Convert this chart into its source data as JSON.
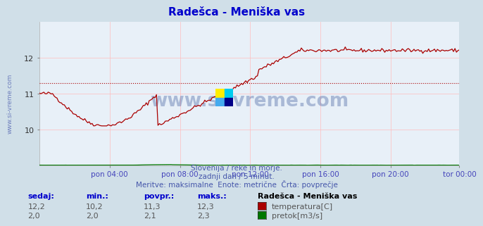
{
  "title": "Radešca - Meniška vas",
  "background_color": "#d0dfe8",
  "plot_bg_color": "#e8f0f8",
  "grid_color_h": "#ffbbbb",
  "grid_color_v": "#ffbbbb",
  "x_labels": [
    "pon 04:00",
    "pon 08:00",
    "pon 12:00",
    "pon 16:00",
    "pon 20:00",
    "tor 00:00"
  ],
  "n_points": 288,
  "ylim": [
    9.0,
    13.0
  ],
  "y_ticks": [
    10,
    11,
    12
  ],
  "temp_color": "#aa0000",
  "flow_color": "#007700",
  "height_color": "#0000cc",
  "temp_avg": 11.3,
  "temp_min": 10.2,
  "temp_max": 12.3,
  "temp_current": 12.2,
  "flow_avg": 2.1,
  "flow_min": 2.0,
  "flow_max": 2.3,
  "flow_current": 2.0,
  "watermark": "www.si-vreme.com",
  "subtitle1": "Slovenija / reke in morje.",
  "subtitle2": "zadnji dan / 5 minut.",
  "subtitle3": "Meritve: maksimalne  Enote: metrične  Črta: povprečje",
  "label_sedaj": "sedaj:",
  "label_min": "min.:",
  "label_povpr": "povpr.:",
  "label_maks": "maks.:",
  "legend_title": "Radešca - Meniška vas",
  "legend_temp": "temperatura[C]",
  "legend_flow": "pretok[m3/s]",
  "left_label": "www.si-vreme.com",
  "icon_colors": [
    "#ffee00",
    "#00ccee",
    "#00aaee",
    "#000066"
  ]
}
